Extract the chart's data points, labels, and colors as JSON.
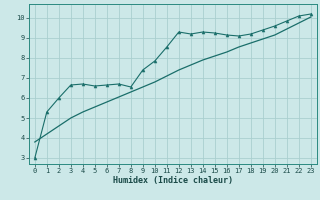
{
  "xlabel": "Humidex (Indice chaleur)",
  "bg_color": "#cce8e8",
  "line_color": "#1a6e6a",
  "grid_color": "#aacfcf",
  "spine_color": "#2a8a80",
  "xlim": [
    -0.5,
    23.5
  ],
  "ylim": [
    2.7,
    10.7
  ],
  "xticks": [
    0,
    1,
    2,
    3,
    4,
    5,
    6,
    7,
    8,
    9,
    10,
    11,
    12,
    13,
    14,
    15,
    16,
    17,
    18,
    19,
    20,
    21,
    22,
    23
  ],
  "yticks": [
    3,
    4,
    5,
    6,
    7,
    8,
    9,
    10
  ],
  "data_x": [
    0,
    1,
    2,
    3,
    4,
    5,
    6,
    7,
    8,
    9,
    10,
    11,
    12,
    13,
    14,
    15,
    16,
    17,
    18,
    19,
    20,
    21,
    22,
    23
  ],
  "data_y": [
    3.0,
    5.3,
    6.0,
    6.65,
    6.7,
    6.6,
    6.65,
    6.7,
    6.55,
    7.4,
    7.85,
    8.55,
    9.3,
    9.2,
    9.3,
    9.25,
    9.15,
    9.1,
    9.2,
    9.4,
    9.6,
    9.85,
    10.1,
    10.2
  ],
  "trend_y": [
    3.8,
    4.2,
    4.6,
    5.0,
    5.3,
    5.55,
    5.8,
    6.05,
    6.3,
    6.55,
    6.8,
    7.1,
    7.4,
    7.65,
    7.9,
    8.1,
    8.3,
    8.55,
    8.75,
    8.95,
    9.15,
    9.45,
    9.75,
    10.05
  ],
  "xlabel_fontsize": 6,
  "tick_fontsize": 5
}
